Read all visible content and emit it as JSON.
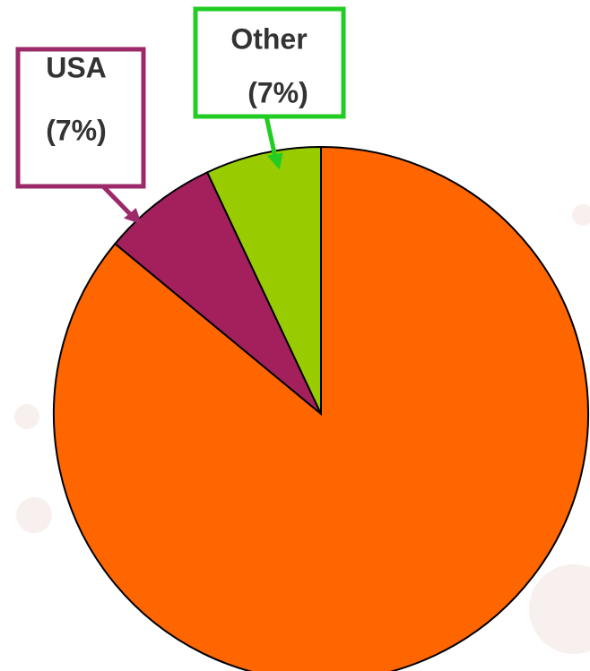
{
  "chart_data": {
    "type": "pie",
    "categories": [
      null,
      "USA",
      "Other"
    ],
    "values": [
      86,
      7,
      7
    ],
    "value_labels": [
      null,
      "(7%)",
      "(7%)"
    ],
    "colors": [
      "#ff6600",
      "#a3205c",
      "#99cc00"
    ],
    "label_border_colors": [
      null,
      "#9c2a6a",
      "#22cc22"
    ],
    "annotation": "call"
  }
}
